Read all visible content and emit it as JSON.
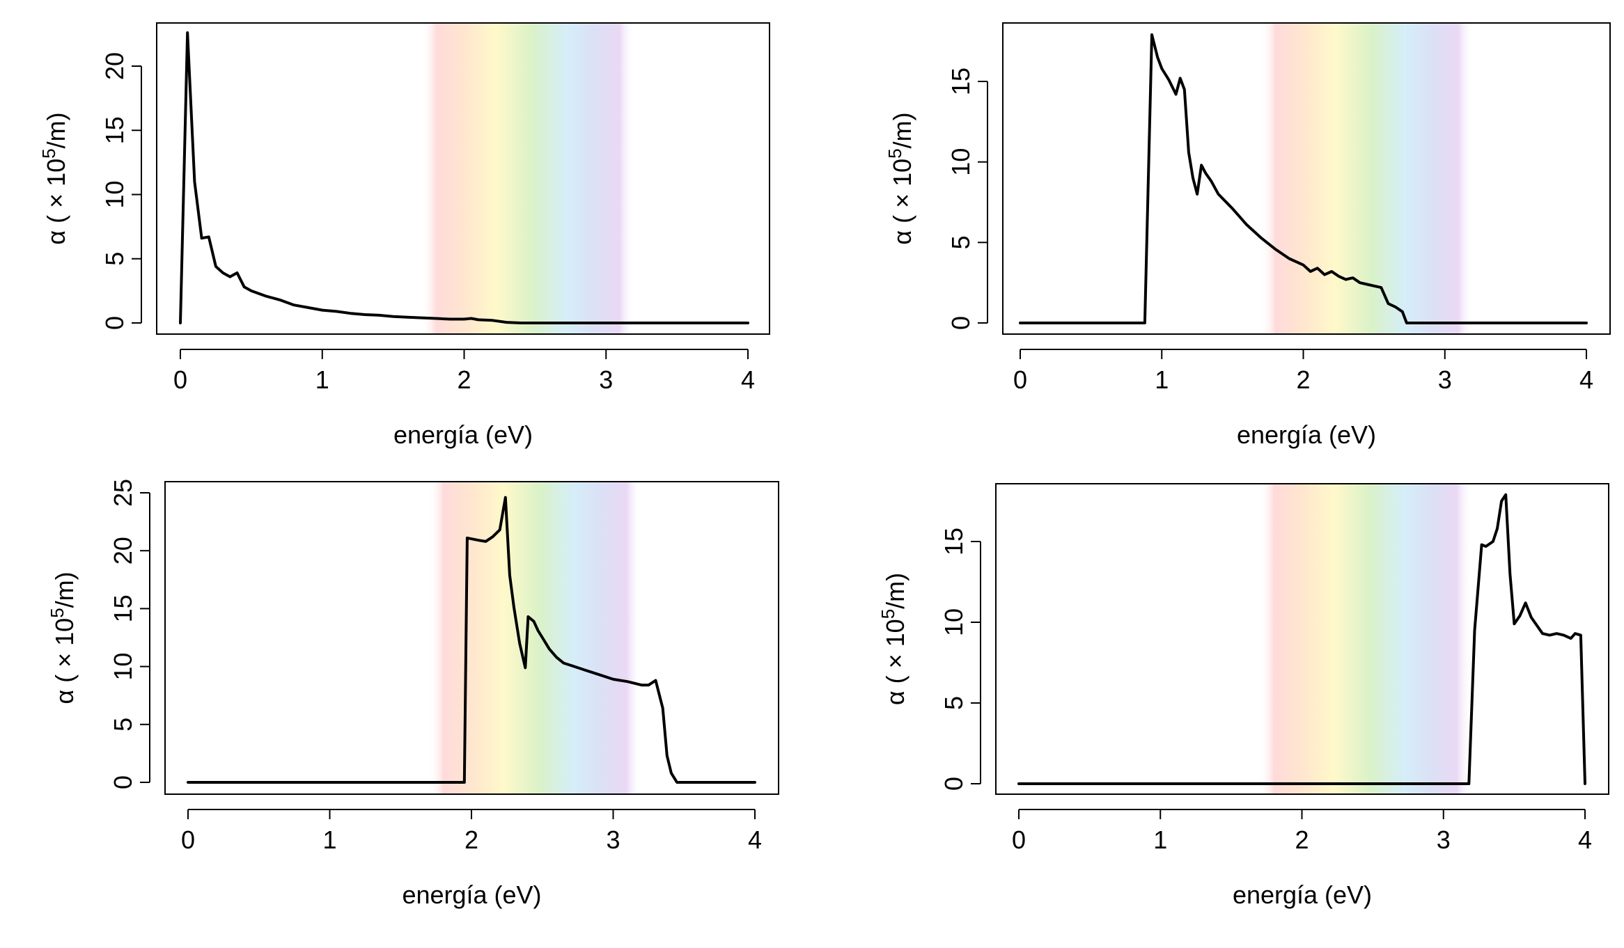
{
  "figure": {
    "background": "#ffffff",
    "line_color": "#000000",
    "spectrum_colors": [
      "#ffd6d6",
      "#ffe6c8",
      "#fff8c4",
      "#d6f0c2",
      "#d0ecf8",
      "#d8dcf4",
      "#e8d4f4"
    ]
  },
  "chart_data": [
    {
      "id": "top-left",
      "type": "line",
      "xlabel": "energía (eV)",
      "ylabel_prefix": "α ( × 10",
      "ylabel_sup": "5",
      "ylabel_suffix": "/m)",
      "xlim": [
        0,
        4
      ],
      "ylim": [
        0,
        23
      ],
      "xticks": [
        0,
        1,
        2,
        3,
        4
      ],
      "yticks": [
        0,
        5,
        10,
        15,
        20
      ],
      "spectrum_band": [
        1.7,
        3.2
      ],
      "x": [
        0,
        0.05,
        0.1,
        0.15,
        0.2,
        0.25,
        0.3,
        0.35,
        0.4,
        0.45,
        0.5,
        0.6,
        0.7,
        0.8,
        0.9,
        1.0,
        1.1,
        1.2,
        1.3,
        1.4,
        1.5,
        1.6,
        1.7,
        1.8,
        1.9,
        2.0,
        2.05,
        2.1,
        2.2,
        2.3,
        2.4,
        2.6,
        3.0,
        3.5,
        4.0
      ],
      "y": [
        0,
        22.6,
        11.0,
        6.6,
        6.7,
        4.4,
        3.9,
        3.6,
        3.9,
        2.8,
        2.5,
        2.1,
        1.8,
        1.4,
        1.2,
        1.0,
        0.9,
        0.75,
        0.65,
        0.6,
        0.5,
        0.45,
        0.4,
        0.35,
        0.3,
        0.3,
        0.35,
        0.25,
        0.2,
        0.05,
        0,
        0,
        0,
        0,
        0
      ]
    },
    {
      "id": "top-right",
      "type": "line",
      "xlabel": "energía (eV)",
      "ylabel_prefix": "α ( × 10",
      "ylabel_sup": "5",
      "ylabel_suffix": "/m)",
      "xlim": [
        0,
        4
      ],
      "ylim": [
        0,
        18.5
      ],
      "xticks": [
        0,
        1,
        2,
        3,
        4
      ],
      "yticks": [
        0,
        5,
        10,
        15
      ],
      "spectrum_band": [
        1.7,
        3.2
      ],
      "x": [
        0,
        0.5,
        0.88,
        0.93,
        0.97,
        1.0,
        1.05,
        1.1,
        1.13,
        1.16,
        1.19,
        1.22,
        1.25,
        1.28,
        1.31,
        1.35,
        1.4,
        1.5,
        1.6,
        1.7,
        1.8,
        1.9,
        2.0,
        2.05,
        2.1,
        2.15,
        2.2,
        2.25,
        2.3,
        2.35,
        2.4,
        2.45,
        2.5,
        2.55,
        2.6,
        2.65,
        2.7,
        2.73,
        2.8,
        3.0,
        3.5,
        4.0
      ],
      "y": [
        0,
        0,
        0,
        17.9,
        16.5,
        15.8,
        15.1,
        14.2,
        15.2,
        14.5,
        10.6,
        9.0,
        8.0,
        9.8,
        9.3,
        8.8,
        8.0,
        7.1,
        6.1,
        5.3,
        4.6,
        4.0,
        3.6,
        3.2,
        3.4,
        3.0,
        3.2,
        2.9,
        2.7,
        2.8,
        2.5,
        2.4,
        2.3,
        2.2,
        1.2,
        1.0,
        0.7,
        0,
        0,
        0,
        0,
        0
      ]
    },
    {
      "id": "bottom-left",
      "type": "line",
      "xlabel": "energía (eV)",
      "ylabel_prefix": "α ( × 10",
      "ylabel_sup": "5",
      "ylabel_suffix": "/m)",
      "xlim": [
        0,
        4
      ],
      "ylim": [
        0,
        25.5
      ],
      "xticks": [
        0,
        1,
        2,
        3,
        4
      ],
      "yticks": [
        0,
        5,
        10,
        15,
        20,
        25
      ],
      "spectrum_band": [
        1.7,
        3.2
      ],
      "x": [
        0,
        1.0,
        1.95,
        1.97,
        2.05,
        2.1,
        2.15,
        2.2,
        2.24,
        2.27,
        2.3,
        2.34,
        2.38,
        2.4,
        2.44,
        2.47,
        2.5,
        2.55,
        2.6,
        2.65,
        2.7,
        2.8,
        2.9,
        3.0,
        3.1,
        3.2,
        3.25,
        3.3,
        3.35,
        3.38,
        3.41,
        3.45,
        3.5,
        4.0
      ],
      "y": [
        0,
        0,
        0,
        21.1,
        20.9,
        20.8,
        21.2,
        21.8,
        24.6,
        17.9,
        15.1,
        12.0,
        9.9,
        14.3,
        13.9,
        13.1,
        12.5,
        11.5,
        10.8,
        10.3,
        10.1,
        9.7,
        9.3,
        8.9,
        8.7,
        8.4,
        8.4,
        8.8,
        6.4,
        2.3,
        0.8,
        0,
        0,
        0
      ]
    },
    {
      "id": "bottom-right",
      "type": "line",
      "xlabel": "energía (eV)",
      "ylabel_prefix": "α ( × 10",
      "ylabel_sup": "5",
      "ylabel_suffix": "/m)",
      "xlim": [
        0,
        4
      ],
      "ylim": [
        0,
        18.2
      ],
      "xticks": [
        0,
        1,
        2,
        3,
        4
      ],
      "yticks": [
        0,
        5,
        10,
        15
      ],
      "spectrum_band": [
        1.7,
        3.2
      ],
      "x": [
        0,
        1.0,
        2.0,
        3.18,
        3.22,
        3.27,
        3.3,
        3.35,
        3.38,
        3.41,
        3.44,
        3.47,
        3.5,
        3.54,
        3.58,
        3.62,
        3.66,
        3.7,
        3.75,
        3.8,
        3.85,
        3.9,
        3.93,
        3.97,
        4.0
      ],
      "y": [
        0,
        0,
        0,
        0,
        9.5,
        14.8,
        14.7,
        15.0,
        15.8,
        17.5,
        17.9,
        13.0,
        9.9,
        10.4,
        11.2,
        10.3,
        9.8,
        9.3,
        9.2,
        9.3,
        9.2,
        9.0,
        9.3,
        9.2,
        0
      ]
    }
  ]
}
